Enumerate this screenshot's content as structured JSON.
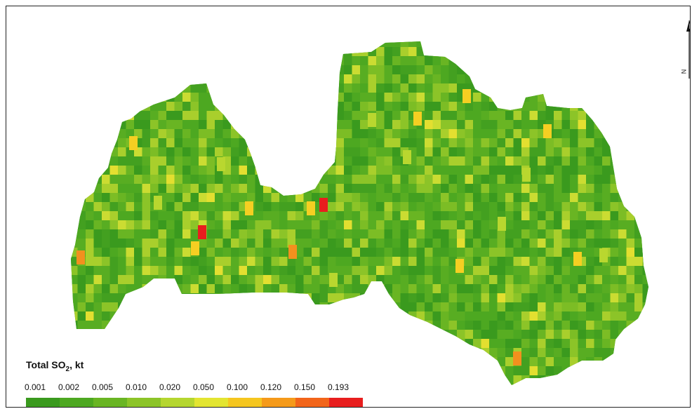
{
  "legend": {
    "title_main": "Total SO",
    "title_sub": "2",
    "title_tail": ", kt",
    "labels": [
      "0.001",
      "0.002",
      "0.005",
      "0.010",
      "0.020",
      "0.050",
      "0.100",
      "0.120",
      "0.150",
      "0.193"
    ],
    "colors": [
      "#3a9a1e",
      "#4da821",
      "#69b523",
      "#8cc428",
      "#b5d630",
      "#e3e531",
      "#f5c61f",
      "#f59a1a",
      "#f2651a",
      "#e81e1e"
    ]
  },
  "north_arrow": {
    "letter": "N",
    "icon": "north-arrow-icon"
  },
  "map": {
    "region": "Latvia",
    "base_color": "#3fa11f",
    "hotspot_colors": {
      "very_high": "#e81e1e",
      "high": "#f2901e",
      "medium": "#f5cf22",
      "low": "#b9d72f",
      "mid_green": "#6fba25"
    }
  }
}
